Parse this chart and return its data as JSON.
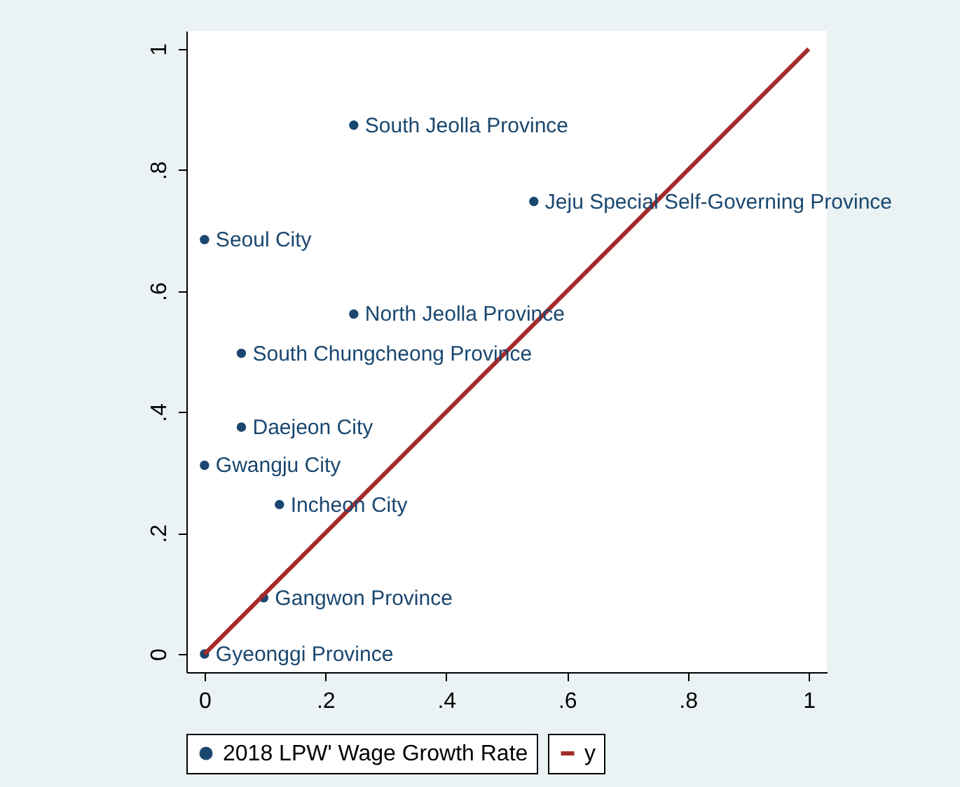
{
  "chart_data": {
    "type": "scatter",
    "xlim": [
      -0.03,
      1.03
    ],
    "ylim": [
      -0.03,
      1.03
    ],
    "xticks": [
      0,
      {
        "value": 0.2,
        "label": ".2"
      },
      {
        "value": 0.4,
        "label": ".4"
      },
      {
        "value": 0.6,
        "label": ".6"
      },
      {
        "value": 0.8,
        "label": ".8"
      },
      1
    ],
    "yticks": [
      0,
      {
        "value": 0.2,
        "label": ".2"
      },
      {
        "value": 0.4,
        "label": ".4"
      },
      {
        "value": 0.6,
        "label": ".6"
      },
      {
        "value": 0.8,
        "label": ".8"
      },
      1
    ],
    "grid": false,
    "legend": "bottom",
    "series": [
      {
        "name": "2018 LPW' Wage Growth Rate",
        "marker": "circle",
        "color": "#1a476f",
        "x": [
          0.247,
          0.545,
          0,
          0.247,
          0.061,
          0.061,
          0,
          0.124,
          0.098,
          0
        ],
        "values": [
          0.874,
          0.748,
          0.685,
          0.562,
          0.497,
          0.375,
          0.312,
          0.247,
          0.093,
          0
        ]
      },
      {
        "name": "y",
        "type": "line",
        "line_style": "solid",
        "color": "#a52a2a",
        "x": [
          0,
          1
        ],
        "values": [
          0,
          1
        ]
      }
    ],
    "annotations": [
      {
        "text": "South Jeolla Province",
        "x": 0.247,
        "y": 0.874
      },
      {
        "text": "Jeju Special Self-Governing Province",
        "x": 0.545,
        "y": 0.748
      },
      {
        "text": "Seoul City",
        "x": 0,
        "y": 0.685
      },
      {
        "text": "North Jeolla Province",
        "x": 0.247,
        "y": 0.562
      },
      {
        "text": "South Chungcheong Province",
        "x": 0.061,
        "y": 0.497
      },
      {
        "text": "Daejeon City",
        "x": 0.061,
        "y": 0.375
      },
      {
        "text": "Gwangju City",
        "x": 0,
        "y": 0.312
      },
      {
        "text": "Incheon City",
        "x": 0.124,
        "y": 0.247
      },
      {
        "text": "Gangwon Province",
        "x": 0.098,
        "y": 0.093
      },
      {
        "text": "Gyeonggi Province",
        "x": 0,
        "y": 0
      }
    ]
  }
}
